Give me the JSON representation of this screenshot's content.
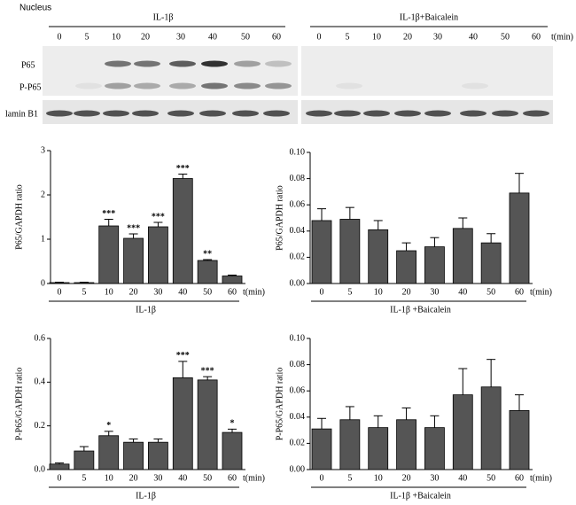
{
  "blot": {
    "compartment": "Nucleus",
    "groups": [
      "IL-1β",
      "IL-1β+Baicalein"
    ],
    "times": [
      "0",
      "5",
      "10",
      "20",
      "30",
      "40",
      "50",
      "60"
    ],
    "unit": "t(min)",
    "rows": [
      "P65",
      "P-P65",
      "lamin B1"
    ]
  },
  "chart_data": [
    {
      "type": "bar",
      "ylabel": "P65/GAPDH ratio",
      "xlabel": "IL-1β",
      "x_unit": "t(min)",
      "color": "#555555",
      "categories": [
        "0",
        "5",
        "10",
        "20",
        "30",
        "40",
        "50",
        "60"
      ],
      "values": [
        0.02,
        0.02,
        1.3,
        1.02,
        1.28,
        2.37,
        0.52,
        0.17
      ],
      "errors": [
        0.01,
        0.01,
        0.15,
        0.1,
        0.1,
        0.1,
        0.02,
        0.02
      ],
      "significance": [
        null,
        null,
        "***",
        "***",
        "***",
        "***",
        "**",
        null
      ],
      "ylim": [
        0,
        3
      ],
      "yticks": [
        0,
        1,
        2,
        3
      ]
    },
    {
      "type": "bar",
      "ylabel": "P65/GAPDH ratio",
      "xlabel": "IL-1β +Baicalein",
      "x_unit": "t(min)",
      "color": "#555555",
      "categories": [
        "0",
        "5",
        "10",
        "20",
        "30",
        "40",
        "50",
        "60"
      ],
      "values": [
        0.048,
        0.049,
        0.041,
        0.025,
        0.028,
        0.042,
        0.031,
        0.069
      ],
      "errors": [
        0.009,
        0.009,
        0.007,
        0.006,
        0.007,
        0.008,
        0.007,
        0.015
      ],
      "ylim": [
        0,
        0.1
      ],
      "yticks": [
        {
          "value": 0,
          "label": "0.00"
        },
        {
          "value": 0.02,
          "label": "0.02"
        },
        {
          "value": 0.04,
          "label": "0.04"
        },
        {
          "value": 0.06,
          "label": "0.06"
        },
        {
          "value": 0.08,
          "label": "0.08"
        },
        {
          "value": 0.1,
          "label": "0.10"
        }
      ]
    },
    {
      "type": "bar",
      "ylabel": "P-P65/GAPDH ratio",
      "xlabel": "IL-1β",
      "x_unit": "t(min)",
      "color": "#555555",
      "categories": [
        "0",
        "5",
        "10",
        "20",
        "30",
        "40",
        "50",
        "60"
      ],
      "values": [
        0.025,
        0.085,
        0.155,
        0.125,
        0.125,
        0.42,
        0.41,
        0.17
      ],
      "errors": [
        0.005,
        0.02,
        0.02,
        0.015,
        0.015,
        0.075,
        0.015,
        0.015
      ],
      "significance": [
        null,
        null,
        "*",
        null,
        null,
        "***",
        "***",
        "*"
      ],
      "ylim": [
        0,
        0.6
      ],
      "yticks": [
        {
          "value": 0,
          "label": "0.0"
        },
        {
          "value": 0.2,
          "label": "0.2"
        },
        {
          "value": 0.4,
          "label": "0.4"
        },
        {
          "value": 0.6,
          "label": "0.6"
        }
      ]
    },
    {
      "type": "bar",
      "ylabel": "P-P65/GAPDH ratio",
      "xlabel": "IL-1β +Baicalein",
      "x_unit": "t(min)",
      "color": "#555555",
      "categories": [
        "0",
        "5",
        "10",
        "20",
        "30",
        "40",
        "50",
        "60"
      ],
      "values": [
        0.031,
        0.038,
        0.032,
        0.038,
        0.032,
        0.057,
        0.063,
        0.045
      ],
      "errors": [
        0.008,
        0.01,
        0.009,
        0.009,
        0.009,
        0.02,
        0.021,
        0.012
      ],
      "ylim": [
        0,
        0.1
      ],
      "yticks": [
        {
          "value": 0,
          "label": "0.00"
        },
        {
          "value": 0.02,
          "label": "0.02"
        },
        {
          "value": 0.04,
          "label": "0.04"
        },
        {
          "value": 0.06,
          "label": "0.06"
        },
        {
          "value": 0.08,
          "label": "0.08"
        },
        {
          "value": 0.1,
          "label": "0.10"
        }
      ]
    }
  ]
}
